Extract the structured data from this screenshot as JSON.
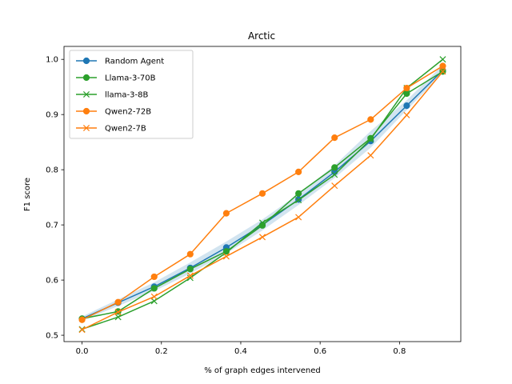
{
  "chart_data": {
    "type": "line",
    "title": "Arctic",
    "xlabel": "% of graph edges intervened",
    "ylabel": "F1 score",
    "xlim": [
      -0.0455,
      0.9545
    ],
    "ylim": [
      0.4885,
      1.0235
    ],
    "x": [
      0.0,
      0.0909,
      0.1818,
      0.2727,
      0.3636,
      0.4545,
      0.5455,
      0.6364,
      0.7273,
      0.8182,
      0.9091
    ],
    "xticks": [
      0.0,
      0.2,
      0.4,
      0.6,
      0.8
    ],
    "xtick_labels": [
      "0.0",
      "0.2",
      "0.4",
      "0.6",
      "0.8"
    ],
    "yticks": [
      0.5,
      0.6,
      0.7,
      0.8,
      0.9,
      1.0
    ],
    "ytick_labels": [
      "0.5",
      "0.6",
      "0.7",
      "0.8",
      "0.9",
      "1.0"
    ],
    "grid": false,
    "legend_location": "upper-left",
    "band": {
      "series": "Random Agent",
      "lower": [
        0.526,
        0.553,
        0.58,
        0.612,
        0.648,
        0.69,
        0.736,
        0.785,
        0.84,
        0.908,
        0.975
      ],
      "upper": [
        0.534,
        0.565,
        0.596,
        0.632,
        0.67,
        0.71,
        0.756,
        0.808,
        0.87,
        0.926,
        0.99
      ]
    },
    "series": [
      {
        "name": "Random Agent",
        "color": "#1f77b4",
        "marker": "circle",
        "values": [
          0.53,
          0.559,
          0.588,
          0.622,
          0.659,
          0.7,
          0.746,
          0.796,
          0.852,
          0.916,
          0.98
        ]
      },
      {
        "name": "Llama-3-70B",
        "color": "#2ca02c",
        "marker": "circle",
        "values": [
          0.53,
          0.543,
          0.585,
          0.62,
          0.652,
          0.699,
          0.757,
          0.804,
          0.857,
          0.938,
          0.978
        ]
      },
      {
        "name": "llama-3-8B",
        "color": "#2ca02c",
        "marker": "x",
        "values": [
          0.511,
          0.533,
          0.562,
          0.604,
          0.65,
          0.704,
          0.745,
          0.791,
          0.855,
          0.948,
          1.0
        ]
      },
      {
        "name": "Qwen2-72B",
        "color": "#ff7f0e",
        "marker": "circle",
        "values": [
          0.528,
          0.56,
          0.606,
          0.647,
          0.721,
          0.757,
          0.796,
          0.858,
          0.891,
          0.948,
          0.988
        ]
      },
      {
        "name": "Qwen2-7B",
        "color": "#ff7f0e",
        "marker": "x",
        "values": [
          0.51,
          0.542,
          0.57,
          0.608,
          0.643,
          0.678,
          0.714,
          0.771,
          0.826,
          0.899,
          0.978
        ]
      }
    ]
  }
}
